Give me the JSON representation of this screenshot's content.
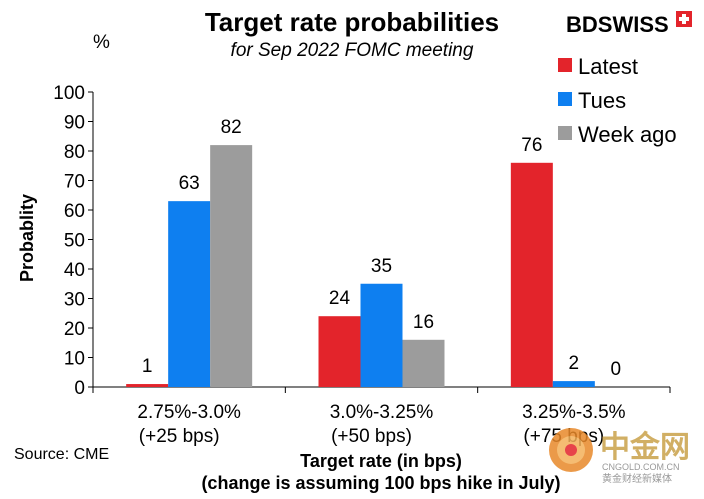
{
  "chart_data": {
    "type": "bar",
    "title": "Target rate probabilities",
    "subtitle": "for Sep 2022 FOMC meeting",
    "unit_label": "%",
    "ylabel": "Probablity",
    "xlabel": "Target rate (in bps)",
    "xlabel_note": "(change is assuming 100 bps hike in July)",
    "ylim": [
      0,
      100
    ],
    "yticks": [
      0,
      10,
      20,
      30,
      40,
      50,
      60,
      70,
      80,
      90,
      100
    ],
    "categories": [
      "2.75%-3.0%",
      "3.0%-3.25%",
      "3.25%-3.5%"
    ],
    "category_notes": [
      "(+25 bps)",
      "(+50 bps)",
      "(+75 bps)"
    ],
    "series": [
      {
        "name": "Latest",
        "color": "#e3242b",
        "values": [
          1,
          24,
          76
        ]
      },
      {
        "name": "Tues",
        "color": "#0e7ff0",
        "values": [
          63,
          35,
          2
        ]
      },
      {
        "name": "Week ago",
        "color": "#9c9c9c",
        "values": [
          82,
          16,
          0
        ]
      }
    ],
    "source": "Source: CME"
  },
  "branding": {
    "logo_text": "BDSWISS",
    "logo_color": "#e3242b",
    "watermark_cn": "中金网",
    "watermark_url": "CNGOLD.COM.CN",
    "watermark_tagline": "黄金财经新媒体"
  }
}
